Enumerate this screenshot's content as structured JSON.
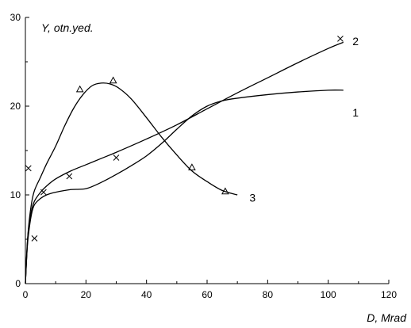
{
  "chart_data": {
    "type": "line",
    "title": "",
    "xlabel": "D, Mrad",
    "ylabel": "Y, otn.yed.",
    "xlim": [
      0,
      120
    ],
    "ylim": [
      0,
      30
    ],
    "x_ticks": [
      0,
      20,
      40,
      60,
      80,
      100,
      120
    ],
    "y_ticks": [
      0,
      10,
      20,
      30
    ],
    "x_tick_labels": [
      "0",
      "20",
      "40",
      "60",
      "80",
      "100",
      "120"
    ],
    "y_tick_labels": [
      "0",
      "10",
      "20",
      "30"
    ],
    "grid": false,
    "legend": "none",
    "curves": [
      {
        "label": "1",
        "x": [
          0,
          0.5,
          1,
          2,
          3,
          5,
          7,
          10,
          15,
          20,
          25,
          30,
          35,
          40,
          45,
          50,
          55,
          60,
          65,
          70,
          80,
          90,
          100,
          105
        ],
        "y": [
          0,
          3.5,
          5.5,
          7.8,
          8.9,
          9.6,
          10.0,
          10.3,
          10.6,
          10.7,
          11.4,
          12.3,
          13.3,
          14.4,
          15.8,
          17.4,
          18.9,
          20.0,
          20.6,
          20.9,
          21.3,
          21.6,
          21.8,
          21.8
        ]
      },
      {
        "label": "2",
        "x": [
          0,
          0.5,
          1,
          2,
          3,
          5,
          7,
          10,
          15,
          20,
          25,
          30,
          40,
          50,
          60,
          70,
          80,
          90,
          100,
          105
        ],
        "y": [
          0,
          3.8,
          6.0,
          8.2,
          9.3,
          10.3,
          11.0,
          11.8,
          12.7,
          13.4,
          14.1,
          14.8,
          16.3,
          17.9,
          19.7,
          21.5,
          23.2,
          24.9,
          26.5,
          27.2
        ]
      },
      {
        "label": "3",
        "x": [
          0,
          0.5,
          1,
          2,
          3,
          5,
          7,
          10,
          13,
          16,
          19,
          22,
          25,
          28,
          31,
          35,
          40,
          45,
          50,
          55,
          60,
          65,
          70
        ],
        "y": [
          0,
          3.5,
          6.2,
          9.0,
          10.5,
          12.0,
          13.5,
          15.5,
          17.8,
          19.8,
          21.3,
          22.3,
          22.6,
          22.5,
          22.0,
          20.8,
          18.7,
          16.5,
          14.5,
          12.7,
          11.5,
          10.5,
          10.0
        ]
      }
    ],
    "markers_x": {
      "symbol": "cross",
      "points": [
        [
          1,
          13
        ],
        [
          3,
          5.1
        ],
        [
          6,
          10.3
        ],
        [
          14.5,
          12.1
        ],
        [
          30,
          14.2
        ],
        [
          104,
          27.6
        ]
      ]
    },
    "markers_triangle": {
      "symbol": "triangle",
      "points": [
        [
          18,
          21.9
        ],
        [
          29,
          22.9
        ],
        [
          55,
          13.1
        ],
        [
          66,
          10.4
        ]
      ]
    },
    "curve_label_positions": [
      {
        "label": "1",
        "x": 108,
        "y": 19.3
      },
      {
        "label": "2",
        "x": 108,
        "y": 27.3
      },
      {
        "label": "3",
        "x": 74,
        "y": 9.7
      }
    ]
  }
}
